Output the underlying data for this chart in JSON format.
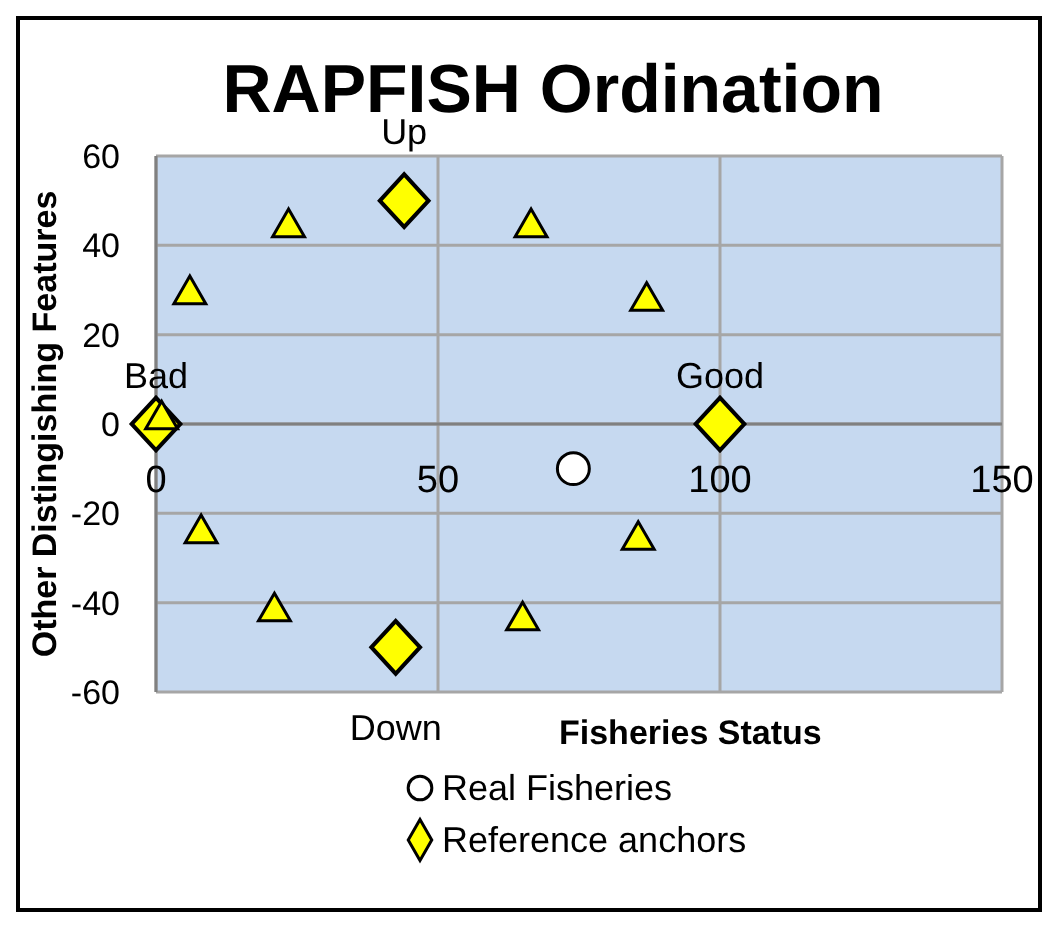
{
  "chart_data": {
    "type": "scatter",
    "title": "RAPFISH Ordination",
    "xlabel": "Fisheries Status",
    "ylabel": "Other Distingishing Features",
    "xlim": [
      0,
      150
    ],
    "ylim": [
      -60,
      60
    ],
    "xticks": [
      0,
      50,
      100,
      150
    ],
    "yticks": [
      -60,
      -40,
      -20,
      0,
      20,
      40,
      60
    ],
    "grid": true,
    "legend": "bottom",
    "series": [
      {
        "name": "Real Fisheries",
        "color": "#ffffff",
        "marker": "circle",
        "x": [
          74
        ],
        "values": [
          -10
        ]
      },
      {
        "name": "Reference anchors",
        "color": "#ffff00",
        "marker": "diamond",
        "x": [
          0,
          100,
          44,
          42.5
        ],
        "values": [
          0,
          0,
          50,
          -50
        ]
      },
      {
        "color": "#ffff00",
        "marker": "triangle",
        "x": [
          23.5,
          6,
          1,
          8,
          21,
          66.5,
          87,
          85.5,
          65
        ],
        "values": [
          44,
          29,
          1,
          -24.5,
          -42,
          44,
          27.5,
          -26,
          -44
        ]
      }
    ],
    "annotations": [
      {
        "text": "Bad",
        "x": 0,
        "y": 0
      },
      {
        "text": "Good",
        "x": 100,
        "y": 0
      },
      {
        "text": "Up",
        "x": 44,
        "y": 50
      },
      {
        "text": "Down",
        "x": 42.5,
        "y": -50
      }
    ]
  }
}
